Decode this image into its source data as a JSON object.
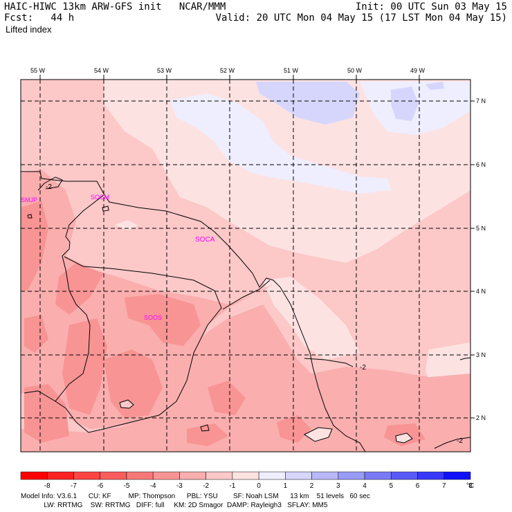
{
  "header": {
    "model_title": "HAIC-HIWC 13km ARW-GFS init   NCAR/MMM",
    "forecast": "Fcst:   44 h",
    "field": "Lifted index",
    "init": "Init: 00 UTC Sun 03 May 15",
    "valid": "Valid: 20 UTC Mon 04 May 15 (17 LST Mon 04 May 15)"
  },
  "map": {
    "lon_labels": [
      "55 W",
      "54 W",
      "53 W",
      "52 W",
      "51 W",
      "50 W",
      "49 W"
    ],
    "lat_labels": [
      "7 N",
      "6 N",
      "5 N",
      "4 N",
      "3 N",
      "2 N"
    ],
    "stations": [
      "SMJP",
      "SOCM",
      "SOCA",
      "SOOS"
    ],
    "contour_labels": [
      "-2",
      "-2",
      "-2"
    ]
  },
  "colorbar": {
    "ticks": [
      "-8",
      "-7",
      "-6",
      "-5",
      "-4",
      "-3",
      "-2",
      "-1",
      "0",
      "1",
      "2",
      "3",
      "4",
      "5",
      "6",
      "7",
      "8"
    ],
    "unit": "°C",
    "colors": [
      "#ff0000",
      "#ff2222",
      "#ff4444",
      "#fb5c5c",
      "#f87878",
      "#f89494",
      "#faaeae",
      "#fcc8c8",
      "#fde2e2",
      "#eeeeff",
      "#d6d6fc",
      "#b8b8fa",
      "#9a9af8",
      "#7a7af8",
      "#5a5afa",
      "#3838fc",
      "#1010ff"
    ]
  },
  "footer": {
    "line1": "Model Info: V3.6.1      CU: KF         MP: Thompson      PBL: YSU        SF: Noah LSM      13 km    51 levels   60 sec",
    "line2": "            LW: RRTMG    SW: RRTMG   DIFF: full     KM: 2D Smagor  DAMP: Rayleigh3   SFLAY: MM5"
  }
}
